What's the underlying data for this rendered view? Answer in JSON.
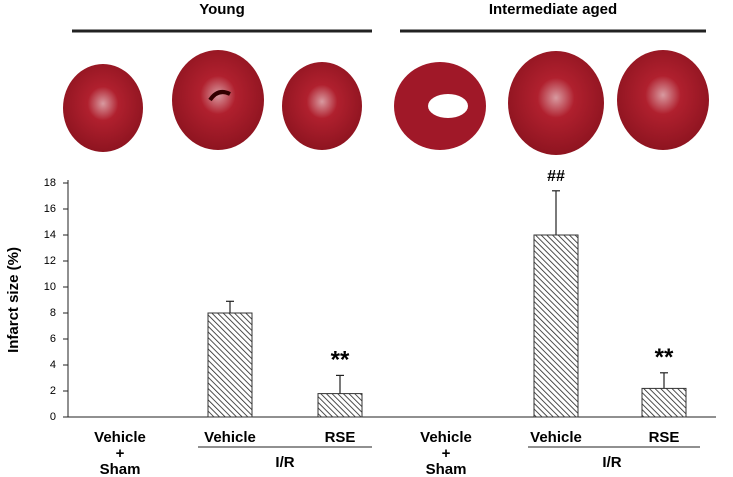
{
  "chart_data": {
    "type": "bar",
    "group_labels": [
      "Young",
      "Intermediate aged"
    ],
    "y_label": "Infarct size (%)",
    "categories": [
      "Vehicle + Sham",
      "Vehicle",
      "RSE",
      "Vehicle + Sham",
      "Vehicle",
      "RSE"
    ],
    "sub_labels": [
      "I/R",
      "I/R"
    ],
    "values": [
      0,
      8.0,
      1.8,
      0,
      14.0,
      2.2
    ],
    "errors": [
      null,
      0.9,
      1.4,
      null,
      3.4,
      1.2
    ],
    "markers": [
      null,
      null,
      "**",
      null,
      "##",
      "**"
    ],
    "color": "#333333",
    "ylim": [
      0,
      18
    ],
    "yticks": [
      0,
      2,
      4,
      6,
      8,
      10,
      12,
      14,
      16,
      18
    ]
  }
}
